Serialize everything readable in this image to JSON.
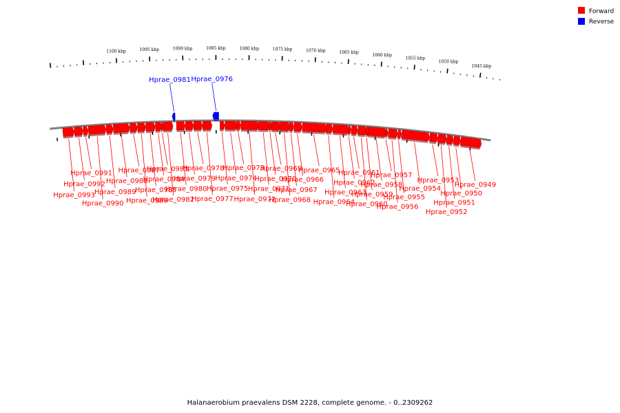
{
  "caption": "Halanaerobium praevalens DSM 2228, complete genome. - 0..2309262",
  "legend": [
    {
      "label": "Forward",
      "color": "#ff0000"
    },
    {
      "label": "Reverse",
      "color": "#0000ff"
    }
  ],
  "colors": {
    "forward": "#ff0000",
    "reverse": "#0000ff",
    "backbone": "#808080"
  },
  "ticks": [
    {
      "label": "1045 kbp",
      "kbp": 1045
    },
    {
      "label": "1050 kbp",
      "kbp": 1050
    },
    {
      "label": "1055 kbp",
      "kbp": 1055
    },
    {
      "label": "1060 kbp",
      "kbp": 1060
    },
    {
      "label": "1065 kbp",
      "kbp": 1065
    },
    {
      "label": "1070 kbp",
      "kbp": 1070
    },
    {
      "label": "1075 kbp",
      "kbp": 1075
    },
    {
      "label": "1080 kbp",
      "kbp": 1080
    },
    {
      "label": "1085 kbp",
      "kbp": 1085
    },
    {
      "label": "1090 kbp",
      "kbp": 1090
    },
    {
      "label": "1095 kbp",
      "kbp": 1095
    },
    {
      "label": "1100 kbp",
      "kbp": 1100
    }
  ],
  "genes": [
    {
      "name": "Hprae_0949",
      "strand": "forward",
      "start_kbp": 1043.5,
      "end_kbp": 1046.6
    },
    {
      "name": "Hprae_0950",
      "strand": "forward",
      "start_kbp": 1046.8,
      "end_kbp": 1047.7
    },
    {
      "name": "Hprae_0951",
      "strand": "forward",
      "start_kbp": 1047.9,
      "end_kbp": 1048.8
    },
    {
      "name": "Hprae_0952",
      "strand": "forward",
      "start_kbp": 1049.0,
      "end_kbp": 1050.2
    },
    {
      "name": "Hprae_0953",
      "strand": "forward",
      "start_kbp": 1050.4,
      "end_kbp": 1051.5
    },
    {
      "name": "Hprae_0954",
      "strand": "forward",
      "start_kbp": 1051.7,
      "end_kbp": 1055.9
    },
    {
      "name": "Hprae_0955",
      "strand": "forward",
      "start_kbp": 1056.1,
      "end_kbp": 1056.5
    },
    {
      "name": "Hprae_0956",
      "strand": "forward",
      "start_kbp": 1056.7,
      "end_kbp": 1058.0
    },
    {
      "name": "Hprae_0957",
      "strand": "forward",
      "start_kbp": 1058.2,
      "end_kbp": 1058.4
    },
    {
      "name": "Hprae_0958",
      "strand": "forward",
      "start_kbp": 1058.5,
      "end_kbp": 1061.2
    },
    {
      "name": "Hprae_0959",
      "strand": "forward",
      "start_kbp": 1061.2,
      "end_kbp": 1061.5
    },
    {
      "name": "Hprae_0960",
      "strand": "forward",
      "start_kbp": 1061.6,
      "end_kbp": 1062.8
    },
    {
      "name": "Hprae_0961",
      "strand": "forward",
      "start_kbp": 1063.0,
      "end_kbp": 1063.8
    },
    {
      "name": "Hprae_0962",
      "strand": "forward",
      "start_kbp": 1064.0,
      "end_kbp": 1064.3
    },
    {
      "name": "Hprae_0963",
      "strand": "forward",
      "start_kbp": 1064.4,
      "end_kbp": 1066.7
    },
    {
      "name": "Hprae_0964",
      "strand": "forward",
      "start_kbp": 1066.9,
      "end_kbp": 1067.8
    },
    {
      "name": "Hprae_0965",
      "strand": "forward",
      "start_kbp": 1067.9,
      "end_kbp": 1071.5
    },
    {
      "name": "Hprae_0966",
      "strand": "forward",
      "start_kbp": 1071.7,
      "end_kbp": 1072.8
    },
    {
      "name": "Hprae_0967",
      "strand": "forward",
      "start_kbp": 1073.0,
      "end_kbp": 1073.5
    },
    {
      "name": "Hprae_0968",
      "strand": "forward",
      "start_kbp": 1073.6,
      "end_kbp": 1075.0
    },
    {
      "name": "Hprae_0969",
      "strand": "forward",
      "start_kbp": 1075.1,
      "end_kbp": 1076.3
    },
    {
      "name": "Hprae_0970",
      "strand": "forward",
      "start_kbp": 1076.4,
      "end_kbp": 1076.7
    },
    {
      "name": "Hprae_0971",
      "strand": "forward",
      "start_kbp": 1076.8,
      "end_kbp": 1078.4
    },
    {
      "name": "Hprae_0972",
      "strand": "forward",
      "start_kbp": 1078.5,
      "end_kbp": 1081.1
    },
    {
      "name": "Hprae_0973",
      "strand": "forward",
      "start_kbp": 1081.3,
      "end_kbp": 1081.8
    },
    {
      "name": "Hprae_0974",
      "strand": "forward",
      "start_kbp": 1081.9,
      "end_kbp": 1083.6
    },
    {
      "name": "Hprae_0975",
      "strand": "forward",
      "start_kbp": 1083.8,
      "end_kbp": 1084.4
    },
    {
      "name": "Hprae_0976",
      "strand": "reverse",
      "start_kbp": 1084.6,
      "end_kbp": 1085.4
    },
    {
      "name": "Hprae_0977",
      "strand": "forward",
      "start_kbp": 1085.8,
      "end_kbp": 1087.1
    },
    {
      "name": "Hprae_0978",
      "strand": "forward",
      "start_kbp": 1087.3,
      "end_kbp": 1088.5
    },
    {
      "name": "Hprae_0979",
      "strand": "forward",
      "start_kbp": 1088.7,
      "end_kbp": 1089.8
    },
    {
      "name": "Hprae_0980",
      "strand": "forward",
      "start_kbp": 1090.0,
      "end_kbp": 1091.2
    },
    {
      "name": "Hprae_0981",
      "strand": "reverse",
      "start_kbp": 1091.4,
      "end_kbp": 1091.7
    },
    {
      "name": "Hprae_0982",
      "strand": "forward",
      "start_kbp": 1091.9,
      "end_kbp": 1093.3
    },
    {
      "name": "Hprae_0983",
      "strand": "forward",
      "start_kbp": 1093.4,
      "end_kbp": 1093.6
    },
    {
      "name": "Hprae_0984",
      "strand": "forward",
      "start_kbp": 1093.7,
      "end_kbp": 1094.5
    },
    {
      "name": "Hprae_0985",
      "strand": "forward",
      "start_kbp": 1094.7,
      "end_kbp": 1096.0
    },
    {
      "name": "Hprae_0986",
      "strand": "forward",
      "start_kbp": 1096.2,
      "end_kbp": 1097.3
    },
    {
      "name": "Hprae_0987",
      "strand": "forward",
      "start_kbp": 1097.5,
      "end_kbp": 1098.5
    },
    {
      "name": "Hprae_0988",
      "strand": "forward",
      "start_kbp": 1098.7,
      "end_kbp": 1101.1
    },
    {
      "name": "Hprae_0989",
      "strand": "forward",
      "start_kbp": 1101.3,
      "end_kbp": 1102.2
    },
    {
      "name": "Hprae_0990",
      "strand": "forward",
      "start_kbp": 1102.4,
      "end_kbp": 1105.0
    },
    {
      "name": "Hprae_0991",
      "strand": "forward",
      "start_kbp": 1105.2,
      "end_kbp": 1105.8
    },
    {
      "name": "Hprae_0992",
      "strand": "forward",
      "start_kbp": 1106.0,
      "end_kbp": 1107.2
    },
    {
      "name": "Hprae_0993",
      "strand": "forward",
      "start_kbp": 1107.4,
      "end_kbp": 1109.0
    }
  ]
}
